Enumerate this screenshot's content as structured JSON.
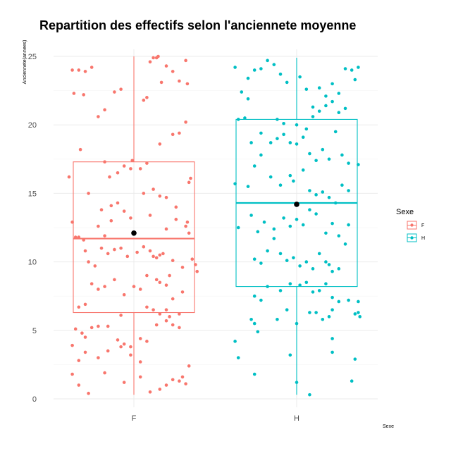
{
  "chart_data": {
    "type": "boxplot",
    "title": "Repartition des effectifs selon l'anciennete moyenne",
    "xlabel": "Sexe",
    "ylabel": "Anciennete(annees)",
    "categories": [
      "F",
      "H"
    ],
    "ylim": [
      0,
      25
    ],
    "yticks": [
      "0",
      "5",
      "10",
      "15",
      "20",
      "25"
    ],
    "grid": true,
    "legend": {
      "title": "Sexe",
      "position": "right",
      "entries": [
        "F",
        "H"
      ]
    },
    "colors": {
      "F": "#F8766D",
      "H": "#00BFC4",
      "mean": "#000000"
    },
    "boxes": [
      {
        "category": "F",
        "min": 0.3,
        "q1": 6.3,
        "median": 11.7,
        "q3": 17.3,
        "max": 25.0,
        "mean": 12.1
      },
      {
        "category": "H",
        "min": 0.3,
        "q1": 8.2,
        "median": 14.3,
        "q3": 20.4,
        "max": 24.9,
        "mean": 14.2
      }
    ],
    "points": {
      "F": [
        [
          -0.38,
          24.0
        ],
        [
          -0.34,
          24.0
        ],
        [
          -0.3,
          23.9
        ],
        [
          -0.26,
          24.2
        ],
        [
          -0.31,
          22.2
        ],
        [
          -0.37,
          22.3
        ],
        [
          -0.33,
          18.2
        ],
        [
          -0.22,
          20.6
        ],
        [
          -0.18,
          21.1
        ],
        [
          0.06,
          21.8
        ],
        [
          0.08,
          22.0
        ],
        [
          0.1,
          24.6
        ],
        [
          0.14,
          24.9
        ],
        [
          0.15,
          25.0
        ],
        [
          0.12,
          24.9
        ],
        [
          0.17,
          23.1
        ],
        [
          -0.12,
          22.4
        ],
        [
          -0.08,
          22.6
        ],
        [
          0.2,
          24.3
        ],
        [
          0.24,
          23.9
        ],
        [
          0.28,
          23.2
        ],
        [
          0.32,
          24.7
        ],
        [
          0.33,
          23.0
        ],
        [
          0.24,
          19.3
        ],
        [
          0.28,
          19.4
        ],
        [
          0.32,
          20.2
        ],
        [
          0.16,
          18.6
        ],
        [
          -0.4,
          16.2
        ],
        [
          -0.38,
          12.9
        ],
        [
          -0.34,
          11.8
        ],
        [
          -0.18,
          17.3
        ],
        [
          -0.15,
          16.2
        ],
        [
          -0.1,
          16.5
        ],
        [
          -0.06,
          17.0
        ],
        [
          -0.02,
          16.8
        ],
        [
          -0.01,
          17.4
        ],
        [
          0.08,
          17.2
        ],
        [
          0.12,
          15.3
        ],
        [
          0.16,
          14.8
        ],
        [
          0.2,
          14.7
        ],
        [
          0.26,
          14.0
        ],
        [
          0.34,
          15.8
        ],
        [
          0.35,
          16.1
        ],
        [
          -0.28,
          15.0
        ],
        [
          -0.2,
          13.8
        ],
        [
          -0.14,
          14.1
        ],
        [
          -0.1,
          14.3
        ],
        [
          0.04,
          16.8
        ],
        [
          0.06,
          15.0
        ],
        [
          -0.22,
          12.6
        ],
        [
          -0.18,
          11.9
        ],
        [
          -0.14,
          13.0
        ],
        [
          -0.06,
          13.7
        ],
        [
          -0.02,
          13.2
        ],
        [
          0.1,
          13.4
        ],
        [
          0.2,
          12.4
        ],
        [
          0.26,
          13.1
        ],
        [
          0.32,
          12.6
        ],
        [
          0.33,
          12.9
        ],
        [
          0.34,
          12.1
        ],
        [
          0.36,
          10.2
        ],
        [
          0.38,
          9.8
        ],
        [
          0.39,
          9.3
        ],
        [
          -0.36,
          11.8
        ],
        [
          -0.31,
          11.6
        ],
        [
          -0.3,
          10.8
        ],
        [
          -0.28,
          10.0
        ],
        [
          -0.24,
          9.7
        ],
        [
          -0.2,
          11.0
        ],
        [
          -0.16,
          10.6
        ],
        [
          -0.12,
          10.9
        ],
        [
          -0.08,
          11.0
        ],
        [
          -0.04,
          10.4
        ],
        [
          0.02,
          10.7
        ],
        [
          0.06,
          11.1
        ],
        [
          0.1,
          10.8
        ],
        [
          0.12,
          10.4
        ],
        [
          0.14,
          10.3
        ],
        [
          0.16,
          10.5
        ],
        [
          0.18,
          10.6
        ],
        [
          0.22,
          9.0
        ],
        [
          0.24,
          10.1
        ],
        [
          0.3,
          9.6
        ],
        [
          -0.26,
          8.4
        ],
        [
          -0.22,
          8.0
        ],
        [
          -0.18,
          8.2
        ],
        [
          -0.12,
          8.7
        ],
        [
          -0.06,
          7.6
        ],
        [
          0.0,
          8.2
        ],
        [
          0.04,
          8.0
        ],
        [
          0.08,
          9.0
        ],
        [
          0.14,
          8.7
        ],
        [
          0.16,
          8.5
        ],
        [
          0.2,
          8.3
        ],
        [
          0.24,
          7.3
        ],
        [
          0.3,
          7.8
        ],
        [
          -0.34,
          6.7
        ],
        [
          -0.3,
          6.9
        ],
        [
          0.08,
          6.7
        ],
        [
          0.12,
          6.5
        ],
        [
          0.16,
          6.2
        ],
        [
          0.2,
          6.5
        ],
        [
          0.22,
          6.0
        ],
        [
          0.28,
          6.2
        ],
        [
          -0.08,
          6.1
        ],
        [
          -0.36,
          5.1
        ],
        [
          -0.32,
          4.8
        ],
        [
          -0.3,
          4.5
        ],
        [
          -0.26,
          5.2
        ],
        [
          -0.22,
          5.3
        ],
        [
          -0.16,
          5.3
        ],
        [
          -0.1,
          4.3
        ],
        [
          -0.06,
          4.0
        ],
        [
          -0.02,
          3.8
        ],
        [
          0.04,
          4.4
        ],
        [
          0.08,
          4.2
        ],
        [
          0.14,
          5.4
        ],
        [
          0.2,
          5.7
        ],
        [
          0.24,
          5.4
        ],
        [
          0.28,
          5.2
        ],
        [
          -0.38,
          3.9
        ],
        [
          -0.34,
          2.8
        ],
        [
          -0.3,
          3.4
        ],
        [
          -0.22,
          3.0
        ],
        [
          -0.16,
          3.5
        ],
        [
          -0.08,
          3.8
        ],
        [
          -0.02,
          3.2
        ],
        [
          0.04,
          2.7
        ],
        [
          -0.38,
          1.8
        ],
        [
          -0.34,
          1.0
        ],
        [
          -0.28,
          0.4
        ],
        [
          -0.18,
          1.9
        ],
        [
          -0.06,
          1.2
        ],
        [
          0.04,
          1.6
        ],
        [
          0.1,
          0.5
        ],
        [
          0.16,
          0.7
        ],
        [
          0.2,
          1.0
        ],
        [
          0.24,
          1.4
        ],
        [
          0.28,
          1.3
        ],
        [
          0.32,
          1.1
        ],
        [
          0.34,
          2.4
        ],
        [
          0.3,
          1.6
        ]
      ],
      "H": [
        [
          -0.38,
          24.2
        ],
        [
          -0.3,
          23.4
        ],
        [
          -0.26,
          24.0
        ],
        [
          -0.22,
          24.1
        ],
        [
          -0.18,
          24.7
        ],
        [
          -0.14,
          24.4
        ],
        [
          -0.1,
          23.7
        ],
        [
          -0.06,
          23.1
        ],
        [
          0.02,
          23.5
        ],
        [
          0.06,
          22.6
        ],
        [
          0.1,
          21.3
        ],
        [
          0.14,
          22.7
        ],
        [
          0.18,
          22.1
        ],
        [
          0.22,
          23.0
        ],
        [
          0.26,
          22.3
        ],
        [
          0.3,
          24.1
        ],
        [
          0.34,
          24.0
        ],
        [
          0.36,
          23.3
        ],
        [
          0.38,
          24.2
        ],
        [
          -0.34,
          22.4
        ],
        [
          -0.3,
          21.9
        ],
        [
          -0.36,
          20.4
        ],
        [
          -0.32,
          20.5
        ],
        [
          -0.12,
          20.4
        ],
        [
          -0.08,
          20.1
        ],
        [
          0.0,
          20.0
        ],
        [
          0.06,
          19.7
        ],
        [
          0.1,
          20.6
        ],
        [
          0.14,
          21.0
        ],
        [
          0.18,
          21.4
        ],
        [
          0.22,
          21.7
        ],
        [
          0.26,
          20.9
        ],
        [
          0.3,
          21.2
        ],
        [
          -0.28,
          18.7
        ],
        [
          -0.22,
          19.4
        ],
        [
          -0.16,
          18.7
        ],
        [
          -0.12,
          19.0
        ],
        [
          -0.08,
          19.3
        ],
        [
          -0.04,
          18.7
        ],
        [
          0.0,
          18.6
        ],
        [
          0.04,
          19.1
        ],
        [
          0.08,
          17.9
        ],
        [
          0.12,
          17.4
        ],
        [
          0.16,
          18.2
        ],
        [
          0.2,
          17.5
        ],
        [
          0.24,
          19.5
        ],
        [
          0.28,
          17.8
        ],
        [
          0.32,
          17.2
        ],
        [
          0.38,
          17.1
        ],
        [
          -0.38,
          15.7
        ],
        [
          -0.26,
          17.0
        ],
        [
          -0.22,
          17.8
        ],
        [
          -0.16,
          16.2
        ],
        [
          -0.1,
          15.6
        ],
        [
          -0.04,
          16.3
        ],
        [
          -0.02,
          15.9
        ],
        [
          0.04,
          16.7
        ],
        [
          0.08,
          15.2
        ],
        [
          0.12,
          14.9
        ],
        [
          0.16,
          15.1
        ],
        [
          0.2,
          14.7
        ],
        [
          0.24,
          14.3
        ],
        [
          0.28,
          15.6
        ],
        [
          0.32,
          15.2
        ],
        [
          -0.3,
          15.5
        ],
        [
          -0.36,
          12.5
        ],
        [
          -0.28,
          13.4
        ],
        [
          -0.24,
          12.2
        ],
        [
          -0.2,
          12.9
        ],
        [
          -0.14,
          12.4
        ],
        [
          -0.08,
          13.2
        ],
        [
          -0.04,
          12.6
        ],
        [
          0.0,
          13.1
        ],
        [
          0.04,
          12.7
        ],
        [
          0.08,
          13.8
        ],
        [
          0.12,
          13.5
        ],
        [
          0.18,
          12.1
        ],
        [
          0.22,
          12.8
        ],
        [
          0.26,
          11.9
        ],
        [
          0.3,
          11.3
        ],
        [
          0.32,
          12.7
        ],
        [
          -0.26,
          10.2
        ],
        [
          -0.22,
          9.9
        ],
        [
          -0.18,
          10.8
        ],
        [
          -0.14,
          11.7
        ],
        [
          -0.1,
          10.6
        ],
        [
          -0.06,
          10.1
        ],
        [
          -0.02,
          10.3
        ],
        [
          0.02,
          9.7
        ],
        [
          0.06,
          10.0
        ],
        [
          0.1,
          9.5
        ],
        [
          0.14,
          10.6
        ],
        [
          0.18,
          10.0
        ],
        [
          0.22,
          9.3
        ],
        [
          0.26,
          9.5
        ],
        [
          0.2,
          9.8
        ],
        [
          -0.26,
          7.5
        ],
        [
          -0.22,
          7.2
        ],
        [
          -0.18,
          8.2
        ],
        [
          -0.1,
          7.9
        ],
        [
          -0.04,
          8.4
        ],
        [
          0.02,
          8.3
        ],
        [
          0.06,
          8.5
        ],
        [
          0.1,
          7.8
        ],
        [
          0.14,
          7.9
        ],
        [
          0.18,
          8.4
        ],
        [
          0.22,
          7.4
        ],
        [
          0.26,
          7.1
        ],
        [
          0.32,
          7.2
        ],
        [
          0.38,
          7.1
        ],
        [
          -0.28,
          5.8
        ],
        [
          -0.26,
          5.5
        ],
        [
          -0.12,
          5.8
        ],
        [
          -0.06,
          6.5
        ],
        [
          0.0,
          5.5
        ],
        [
          0.08,
          6.3
        ],
        [
          0.12,
          6.3
        ],
        [
          0.16,
          5.8
        ],
        [
          0.2,
          6.0
        ],
        [
          0.22,
          6.5
        ],
        [
          0.36,
          6.2
        ],
        [
          0.38,
          6.3
        ],
        [
          0.39,
          6.0
        ],
        [
          -0.38,
          4.2
        ],
        [
          -0.24,
          4.9
        ],
        [
          0.22,
          4.4
        ],
        [
          0.22,
          3.4
        ],
        [
          0.36,
          2.9
        ],
        [
          -0.36,
          3.0
        ],
        [
          -0.26,
          1.8
        ],
        [
          -0.04,
          3.2
        ],
        [
          0.0,
          1.2
        ],
        [
          0.08,
          0.3
        ],
        [
          0.34,
          1.3
        ]
      ]
    }
  }
}
